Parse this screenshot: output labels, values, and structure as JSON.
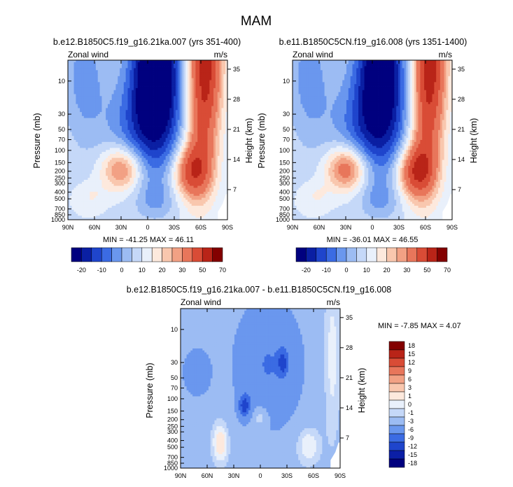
{
  "page_title": "MAM",
  "colors": {
    "full_scale": [
      "#00007f",
      "#0a1fa3",
      "#1f45cc",
      "#3b6be3",
      "#6a97ee",
      "#9cbcf3",
      "#c5d8f8",
      "#e9f0fb",
      "#fde9dd",
      "#f9c7ae",
      "#f2a184",
      "#e8765b",
      "#d94c36",
      "#b92418",
      "#830000"
    ],
    "diff_scale": [
      "#00007f",
      "#0b1fa6",
      "#1f45cc",
      "#3b6be3",
      "#6a97ee",
      "#9cbcf3",
      "#c5d8f8",
      "#e9f0fb",
      "#fde9dd",
      "#f9c7ae",
      "#f2a184",
      "#e8765b",
      "#d94c36",
      "#b92418",
      "#830000"
    ]
  },
  "chart_data": [
    {
      "type": "heatmap",
      "id": "panel1",
      "title": "b.e12.B1850C5.f19_g16.21ka.007 (yrs 351-400)",
      "variable_label": "Zonal wind",
      "units_label": "m/s",
      "ylabel": "Pressure (mb)",
      "ylabel_right": "Height (km)",
      "x_ticks": [
        "90N",
        "60N",
        "30N",
        "0",
        "30S",
        "60S",
        "90S"
      ],
      "x_range": [
        90,
        -90
      ],
      "y_ticks": [
        "10",
        "30",
        "50",
        "70",
        "100",
        "150",
        "200",
        "250",
        "300",
        "400",
        "500",
        "700",
        "850",
        "1000"
      ],
      "y_ticks_right": [
        "35",
        "28",
        "21",
        "14",
        "7"
      ],
      "stats_text": "MIN = -41.25  MAX = 46.11",
      "min": -41.25,
      "max": 46.11,
      "jets": {
        "strat_easterly": -41.25,
        "strat_westerly": 46.11,
        "trop_north": 28,
        "trop_south": 30
      },
      "colorbar_labels": [
        "-20",
        "-10",
        "0",
        "10",
        "20",
        "30",
        "50",
        "70"
      ]
    },
    {
      "type": "heatmap",
      "id": "panel2",
      "title": "b.e11.B1850C5CN.f19_g16.008 (yrs 1351-1400)",
      "variable_label": "Zonal wind",
      "units_label": "m/s",
      "ylabel": "Pressure (mb)",
      "ylabel_right": "Height (km)",
      "x_ticks": [
        "90N",
        "60N",
        "30N",
        "0",
        "30S",
        "60S",
        "90S"
      ],
      "x_range": [
        90,
        -90
      ],
      "y_ticks": [
        "10",
        "30",
        "50",
        "70",
        "100",
        "150",
        "200",
        "250",
        "300",
        "400",
        "500",
        "700",
        "850",
        "1000"
      ],
      "y_ticks_right": [
        "35",
        "28",
        "21",
        "14",
        "7"
      ],
      "stats_text": "MIN = -36.01  MAX =  46.55",
      "min": -36.01,
      "max": 46.55,
      "jets": {
        "strat_easterly": -36.01,
        "strat_westerly": 46.55,
        "trop_north": 32,
        "trop_south": 34
      },
      "colorbar_labels": [
        "-20",
        "-10",
        "0",
        "10",
        "20",
        "30",
        "50",
        "70"
      ]
    },
    {
      "type": "heatmap",
      "id": "diff",
      "title": "b.e12.B1850C5.f19_g16.21ka.007 - b.e11.B1850C5CN.f19_g16.008",
      "variable_label": "Zonal wind",
      "units_label": "m/s",
      "ylabel": "Pressure (mb)",
      "ylabel_right": "Height (km)",
      "x_ticks": [
        "90N",
        "60N",
        "30N",
        "0",
        "30S",
        "60S",
        "90S"
      ],
      "x_range": [
        90,
        -90
      ],
      "y_ticks": [
        "10",
        "30",
        "50",
        "70",
        "100",
        "150",
        "200",
        "250",
        "300",
        "400",
        "500",
        "700",
        "850",
        "1000"
      ],
      "y_ticks_right": [
        "35",
        "28",
        "21",
        "14",
        "7"
      ],
      "stats_text": "MIN = -7.85  MAX =  4.07",
      "min": -7.85,
      "max": 4.07,
      "colorbar_labels": [
        "18",
        "15",
        "12",
        "9",
        "6",
        "3",
        "1",
        "0",
        "-1",
        "-3",
        "-6",
        "-9",
        "-12",
        "-15",
        "-18"
      ]
    }
  ]
}
